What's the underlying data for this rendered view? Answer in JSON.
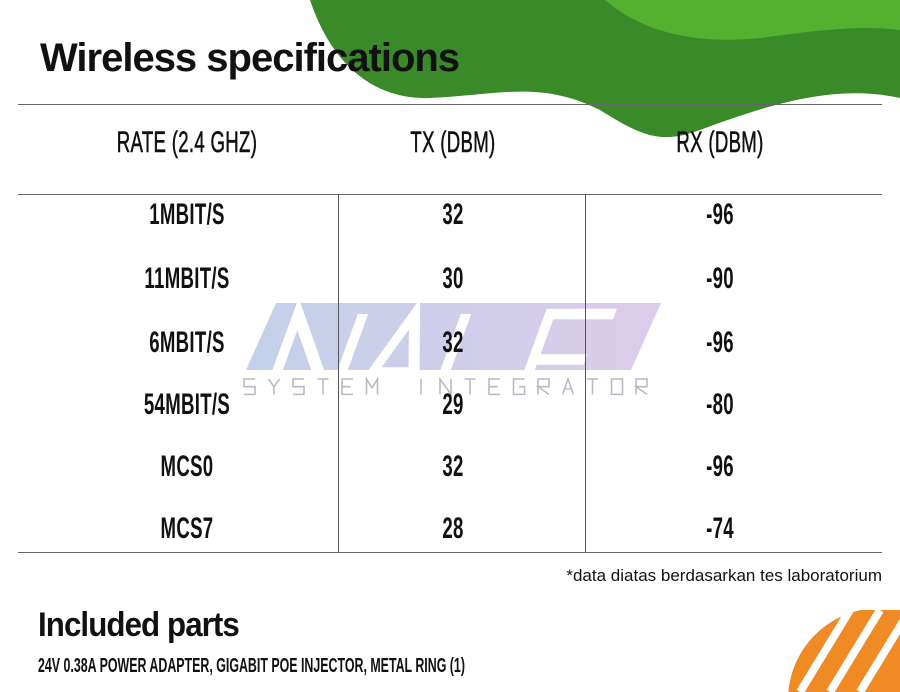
{
  "title": "Wireless specifications",
  "table": {
    "headers": [
      "RATE (2.4 GHZ)",
      "TX (DBM)",
      "RX (DBM)"
    ],
    "rows": [
      [
        "1MBIT/S",
        "32",
        "-96"
      ],
      [
        "11MBIT/S",
        "30",
        "-90"
      ],
      [
        "6MBIT/S",
        "32",
        "-96"
      ],
      [
        "54MBIT/S",
        "29",
        "-80"
      ],
      [
        "MCS0",
        "32",
        "-96"
      ],
      [
        "MCS7",
        "28",
        "-74"
      ]
    ]
  },
  "footnote": "*data diatas berdasarkan tes laboratorium",
  "included": {
    "heading": "Included parts",
    "text": "24V 0.38A POWER ADAPTER, GIGABIT POE INJECTOR, METAL RING (1)"
  },
  "watermark": {
    "brand": "NALE",
    "tagline": "SYSTEM INTEGRATOR"
  },
  "colors": {
    "green_dark": "#3a8a2a",
    "green_light": "#56b030",
    "orange": "#f08a24"
  }
}
